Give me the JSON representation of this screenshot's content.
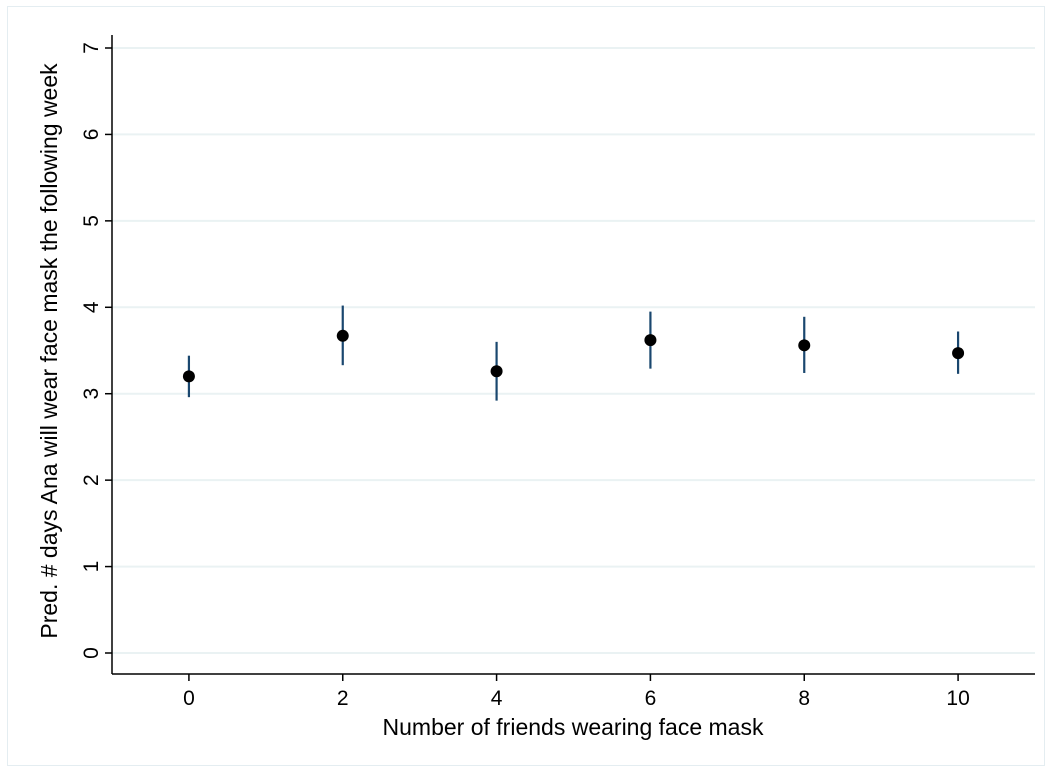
{
  "chart_data": {
    "type": "scatter",
    "title": "",
    "xlabel": "Number of friends wearing face mask",
    "ylabel": "Pred. # days Ana will wear face mask the following week",
    "xlim": [
      -1,
      11
    ],
    "ylim": [
      0,
      7
    ],
    "x_ticks": [
      0,
      2,
      4,
      6,
      8,
      10
    ],
    "x_tick_labels": [
      "0",
      "2",
      "4",
      "6",
      "8",
      "10"
    ],
    "y_ticks": [
      0,
      1,
      2,
      3,
      4,
      5,
      6,
      7
    ],
    "y_tick_labels": [
      "0",
      "1",
      "2",
      "3",
      "4",
      "5",
      "6",
      "7"
    ],
    "grid": "horizontal",
    "legend": "none",
    "series": [
      {
        "x": [
          0,
          2,
          4,
          6,
          8,
          10
        ],
        "y": [
          3.2,
          3.67,
          3.26,
          3.62,
          3.56,
          3.47
        ],
        "ci_low": [
          2.96,
          3.33,
          2.92,
          3.29,
          3.24,
          3.23
        ],
        "ci_high": [
          3.44,
          4.02,
          3.6,
          3.95,
          3.89,
          3.72
        ]
      }
    ],
    "colors": {
      "point": "#000000",
      "error_bar": "#1a476f",
      "grid": "#eaf2f3",
      "axis": "#000000",
      "frame": "#e4edf1"
    }
  }
}
